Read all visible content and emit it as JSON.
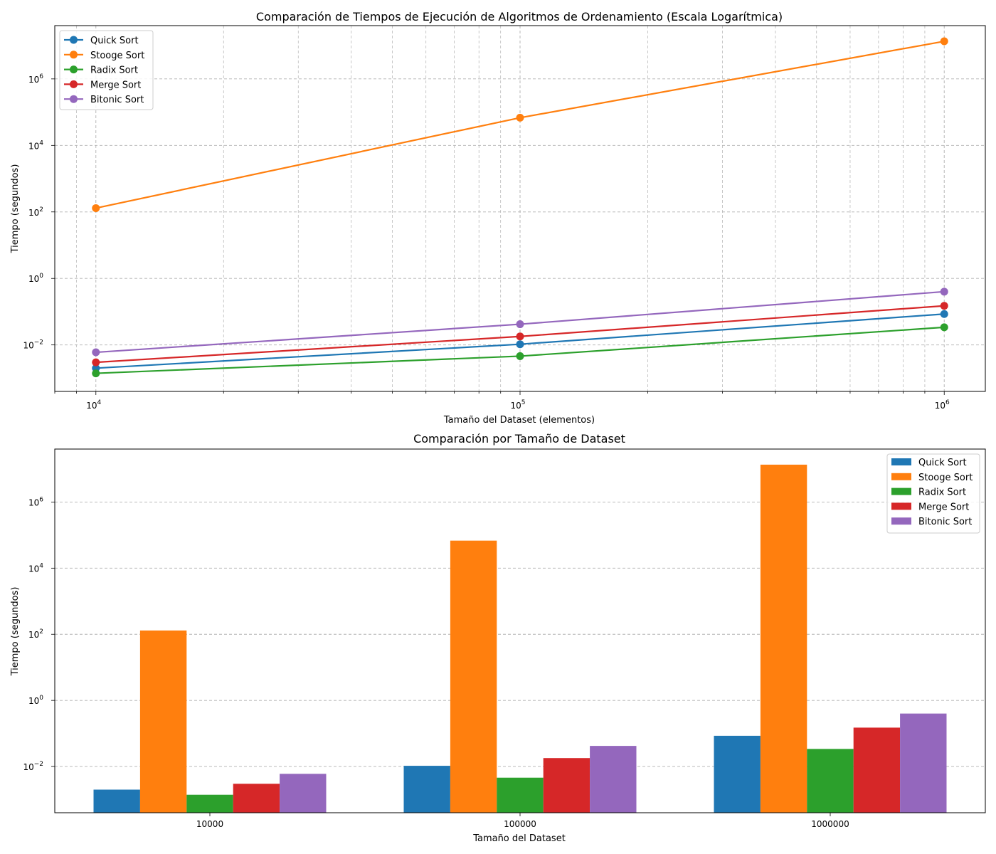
{
  "chart_data": [
    {
      "type": "line",
      "title": "Comparación de Tiempos de Ejecución de Algoritmos de Ordenamiento (Escala Logarítmica)",
      "xlabel": "Tamaño del Dataset (elementos)",
      "ylabel": "Tiempo (segundos)",
      "xscale": "log",
      "yscale": "log",
      "xlim": [
        8000,
        1250000
      ],
      "ylim": [
        0.0004,
        40000000
      ],
      "grid": true,
      "grid_style": "dashed",
      "legend_position": "top-left",
      "x": [
        10000,
        100000,
        1000000
      ],
      "x_ticks": [
        {
          "value": 10000,
          "base": "10",
          "exp": "4"
        },
        {
          "value": 100000,
          "base": "10",
          "exp": "5"
        },
        {
          "value": 1000000,
          "base": "10",
          "exp": "6"
        }
      ],
      "y_ticks": [
        {
          "value": 0.01,
          "base": "10",
          "exp": "−2"
        },
        {
          "value": 1,
          "base": "10",
          "exp": "0"
        },
        {
          "value": 100,
          "base": "10",
          "exp": "2"
        },
        {
          "value": 10000,
          "base": "10",
          "exp": "4"
        },
        {
          "value": 1000000,
          "base": "10",
          "exp": "6"
        }
      ],
      "series": [
        {
          "name": "Quick Sort",
          "color": "#1f77b4",
          "values": [
            0.002,
            0.0105,
            0.085
          ]
        },
        {
          "name": "Stooge Sort",
          "color": "#ff7f0e",
          "values": [
            130,
            68000,
            13500000
          ]
        },
        {
          "name": "Radix Sort",
          "color": "#2ca02c",
          "values": [
            0.0014,
            0.0046,
            0.034
          ]
        },
        {
          "name": "Merge Sort",
          "color": "#d62728",
          "values": [
            0.003,
            0.018,
            0.15
          ]
        },
        {
          "name": "Bitonic Sort",
          "color": "#9467bd",
          "values": [
            0.006,
            0.042,
            0.4
          ]
        }
      ]
    },
    {
      "type": "bar",
      "title": "Comparación por Tamaño de Dataset",
      "xlabel": "Tamaño del Dataset",
      "ylabel": "Tiempo (segundos)",
      "yscale": "log",
      "ylim": [
        0.0004,
        40000000
      ],
      "grid": true,
      "grid_axis": "y",
      "grid_style": "dashed",
      "legend_position": "top-right",
      "categories": [
        "10000",
        "100000",
        "1000000"
      ],
      "y_ticks": [
        {
          "value": 0.01,
          "base": "10",
          "exp": "−2"
        },
        {
          "value": 1,
          "base": "10",
          "exp": "0"
        },
        {
          "value": 100,
          "base": "10",
          "exp": "2"
        },
        {
          "value": 10000,
          "base": "10",
          "exp": "4"
        },
        {
          "value": 1000000,
          "base": "10",
          "exp": "6"
        }
      ],
      "series": [
        {
          "name": "Quick Sort",
          "color": "#1f77b4",
          "values": [
            0.002,
            0.0105,
            0.085
          ]
        },
        {
          "name": "Stooge Sort",
          "color": "#ff7f0e",
          "values": [
            130,
            68000,
            13500000
          ]
        },
        {
          "name": "Radix Sort",
          "color": "#2ca02c",
          "values": [
            0.0014,
            0.0046,
            0.034
          ]
        },
        {
          "name": "Merge Sort",
          "color": "#d62728",
          "values": [
            0.003,
            0.018,
            0.15
          ]
        },
        {
          "name": "Bitonic Sort",
          "color": "#9467bd",
          "values": [
            0.006,
            0.042,
            0.4
          ]
        }
      ]
    }
  ]
}
